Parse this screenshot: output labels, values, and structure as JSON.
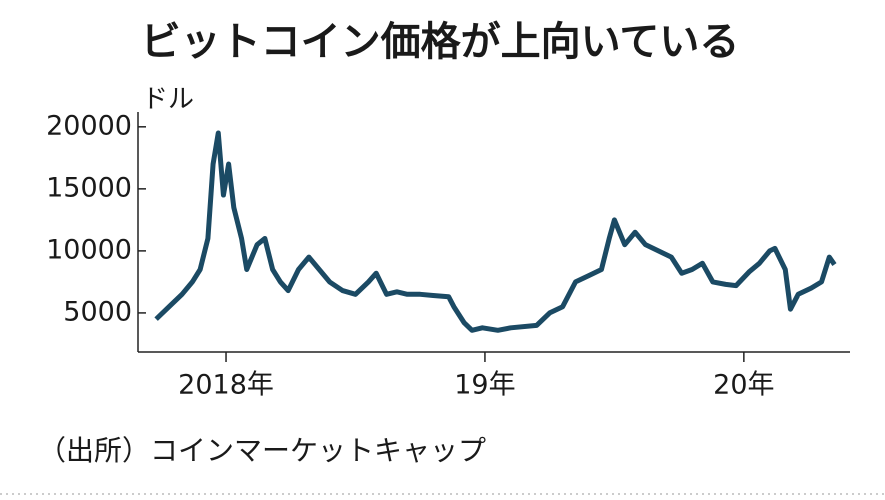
{
  "chart_data": {
    "type": "line",
    "title": "ビットコイン価格が上向いている",
    "y_unit": "ドル",
    "source": "（出所）コインマーケットキャップ",
    "x": [
      2017.73,
      2017.78,
      2017.83,
      2017.87,
      2017.9,
      2017.93,
      2017.95,
      2017.97,
      2017.99,
      2018.01,
      2018.03,
      2018.06,
      2018.08,
      2018.12,
      2018.15,
      2018.18,
      2018.21,
      2018.24,
      2018.28,
      2018.32,
      2018.36,
      2018.4,
      2018.45,
      2018.5,
      2018.55,
      2018.58,
      2018.62,
      2018.66,
      2018.7,
      2018.75,
      2018.8,
      2018.86,
      2018.88,
      2018.92,
      2018.95,
      2018.99,
      2019.05,
      2019.1,
      2019.2,
      2019.25,
      2019.3,
      2019.35,
      2019.4,
      2019.45,
      2019.48,
      2019.5,
      2019.54,
      2019.58,
      2019.62,
      2019.67,
      2019.72,
      2019.76,
      2019.8,
      2019.84,
      2019.88,
      2019.93,
      2019.97,
      2020.02,
      2020.06,
      2020.1,
      2020.12,
      2020.16,
      2020.18,
      2020.21,
      2020.26,
      2020.3,
      2020.33,
      2020.35
    ],
    "series": [
      {
        "color": "#1b4a64",
        "values": [
          4500,
          5500,
          6500,
          7500,
          8500,
          11000,
          17000,
          19500,
          14500,
          17000,
          13500,
          11000,
          8500,
          10500,
          11000,
          8500,
          7500,
          6800,
          8500,
          9500,
          8500,
          7500,
          6800,
          6500,
          7500,
          8200,
          6500,
          6700,
          6500,
          6500,
          6400,
          6300,
          5500,
          4200,
          3600,
          3800,
          3600,
          3800,
          4000,
          5000,
          5500,
          7500,
          8000,
          8500,
          11000,
          12500,
          10500,
          11500,
          10500,
          10000,
          9500,
          8200,
          8500,
          9000,
          7500,
          7300,
          7200,
          8300,
          9000,
          10000,
          10200,
          8500,
          5300,
          6500,
          7000,
          7500,
          9500,
          8900
        ]
      }
    ],
    "xlim": [
      2017.66,
      2020.41
    ],
    "xticks": [
      {
        "value": 2018,
        "label": "2018年"
      },
      {
        "value": 2019,
        "label": "19年"
      },
      {
        "value": 2020,
        "label": "20年"
      }
    ],
    "ylim": [
      1850,
      22000
    ],
    "yticks": [
      5000,
      10000,
      15000,
      20000
    ]
  }
}
